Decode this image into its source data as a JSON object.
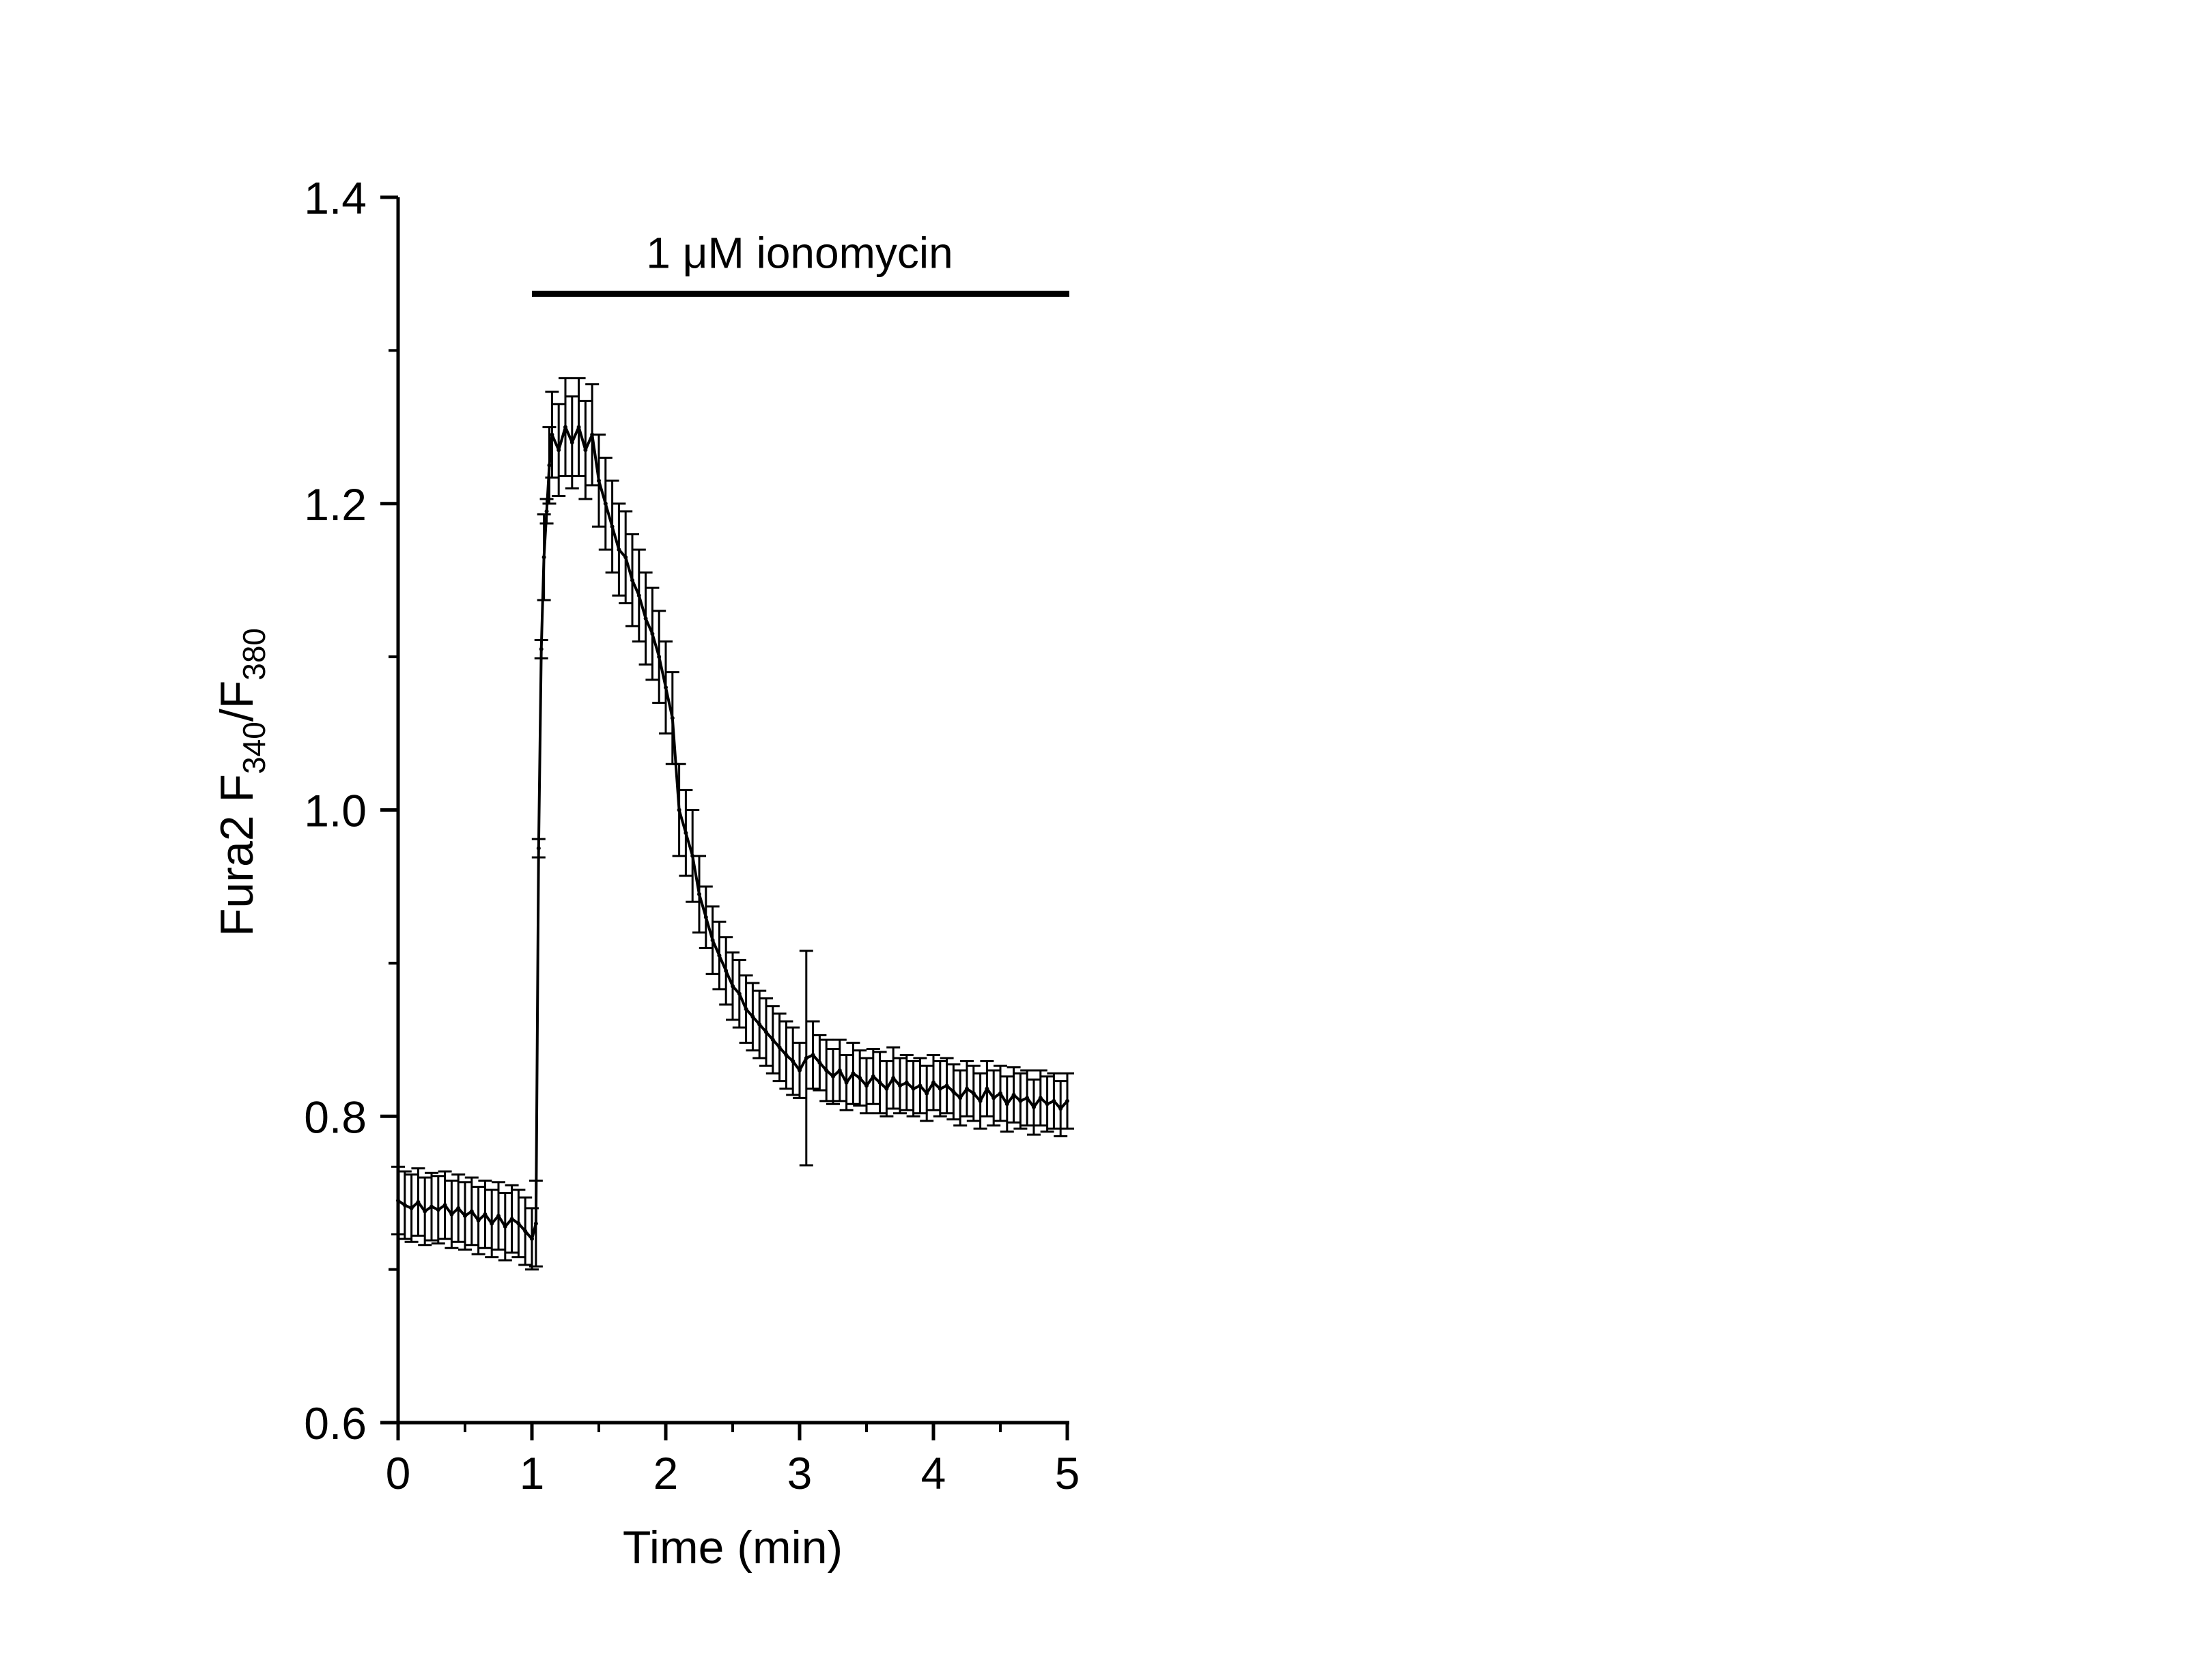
{
  "chart_data": {
    "type": "line",
    "title": "",
    "xlabel": "Time (min)",
    "ylabel": {
      "main": "Fura2 F",
      "sub1": "340",
      "slash": "/F",
      "sub2": "380"
    },
    "xlim": [
      0,
      5
    ],
    "ylim": [
      0.6,
      1.4
    ],
    "xticks": [
      "0",
      "1",
      "2",
      "3",
      "4",
      "5"
    ],
    "yticks": [
      "0.6",
      "0.8",
      "1.0",
      "1.2",
      "1.4"
    ],
    "grid": false,
    "legend": "none",
    "annotation": {
      "text": "1 μM ionomycin",
      "x_start": 1.0,
      "x_end": 5.0,
      "y": 1.337
    },
    "series": [
      {
        "x": [
          0.0,
          0.05,
          0.1,
          0.15,
          0.2,
          0.25,
          0.3,
          0.35,
          0.4,
          0.45,
          0.5,
          0.55,
          0.6,
          0.65,
          0.7,
          0.75,
          0.8,
          0.85,
          0.9,
          0.95,
          1.0,
          1.03,
          1.05,
          1.07,
          1.09,
          1.11,
          1.13,
          1.15,
          1.2,
          1.25,
          1.3,
          1.35,
          1.4,
          1.45,
          1.5,
          1.55,
          1.6,
          1.65,
          1.7,
          1.75,
          1.8,
          1.85,
          1.9,
          1.95,
          2.0,
          2.05,
          2.1,
          2.15,
          2.2,
          2.25,
          2.3,
          2.35,
          2.4,
          2.45,
          2.5,
          2.55,
          2.6,
          2.65,
          2.7,
          2.75,
          2.8,
          2.85,
          2.9,
          2.95,
          3.0,
          3.05,
          3.1,
          3.15,
          3.2,
          3.25,
          3.3,
          3.35,
          3.4,
          3.45,
          3.5,
          3.55,
          3.6,
          3.65,
          3.7,
          3.75,
          3.8,
          3.85,
          3.9,
          3.95,
          4.0,
          4.05,
          4.1,
          4.15,
          4.2,
          4.25,
          4.3,
          4.35,
          4.4,
          4.45,
          4.5,
          4.55,
          4.6,
          4.65,
          4.7,
          4.75,
          4.8,
          4.85,
          4.9,
          4.95,
          5.0
        ],
        "y": [
          0.745,
          0.742,
          0.74,
          0.744,
          0.738,
          0.741,
          0.739,
          0.742,
          0.736,
          0.74,
          0.735,
          0.738,
          0.732,
          0.736,
          0.73,
          0.735,
          0.728,
          0.733,
          0.73,
          0.725,
          0.72,
          0.73,
          0.975,
          1.105,
          1.165,
          1.195,
          1.225,
          1.245,
          1.235,
          1.25,
          1.24,
          1.25,
          1.235,
          1.245,
          1.215,
          1.2,
          1.185,
          1.17,
          1.165,
          1.15,
          1.14,
          1.125,
          1.115,
          1.1,
          1.08,
          1.06,
          1.0,
          0.985,
          0.97,
          0.945,
          0.93,
          0.915,
          0.905,
          0.895,
          0.885,
          0.88,
          0.87,
          0.865,
          0.86,
          0.855,
          0.85,
          0.845,
          0.84,
          0.836,
          0.83,
          0.838,
          0.84,
          0.835,
          0.83,
          0.826,
          0.83,
          0.822,
          0.828,
          0.825,
          0.82,
          0.826,
          0.822,
          0.818,
          0.825,
          0.82,
          0.822,
          0.818,
          0.82,
          0.815,
          0.822,
          0.818,
          0.82,
          0.816,
          0.812,
          0.818,
          0.815,
          0.81,
          0.818,
          0.812,
          0.815,
          0.808,
          0.814,
          0.81,
          0.812,
          0.806,
          0.812,
          0.808,
          0.81,
          0.805,
          0.81
        ],
        "err": [
          0.022,
          0.022,
          0.022,
          0.022,
          0.022,
          0.022,
          0.022,
          0.022,
          0.022,
          0.022,
          0.022,
          0.022,
          0.022,
          0.022,
          0.022,
          0.022,
          0.022,
          0.022,
          0.022,
          0.022,
          0.02,
          0.028,
          0.006,
          0.006,
          0.028,
          0.008,
          0.025,
          0.028,
          0.03,
          0.032,
          0.03,
          0.032,
          0.032,
          0.033,
          0.03,
          0.03,
          0.03,
          0.03,
          0.03,
          0.03,
          0.03,
          0.03,
          0.03,
          0.03,
          0.03,
          0.03,
          0.03,
          0.028,
          0.03,
          0.025,
          0.02,
          0.022,
          0.022,
          0.022,
          0.022,
          0.022,
          0.022,
          0.022,
          0.022,
          0.022,
          0.022,
          0.022,
          0.022,
          0.022,
          0.018,
          0.07,
          0.022,
          0.018,
          0.02,
          0.018,
          0.02,
          0.018,
          0.02,
          0.018,
          0.018,
          0.018,
          0.02,
          0.018,
          0.02,
          0.018,
          0.018,
          0.018,
          0.018,
          0.018,
          0.018,
          0.018,
          0.018,
          0.018,
          0.018,
          0.018,
          0.018,
          0.018,
          0.018,
          0.018,
          0.018,
          0.018,
          0.018,
          0.018,
          0.018,
          0.018,
          0.018,
          0.018,
          0.018,
          0.018,
          0.018
        ]
      }
    ]
  }
}
